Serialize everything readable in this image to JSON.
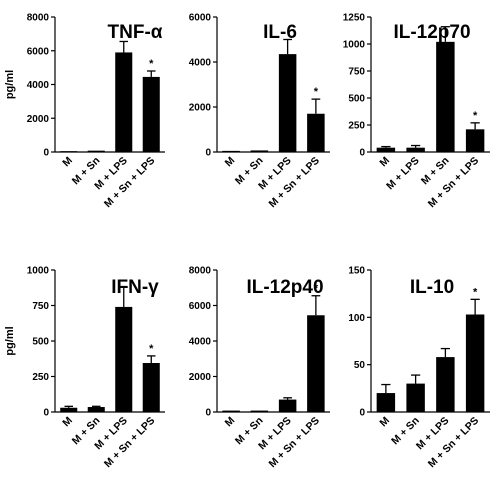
{
  "chart_data": [
    {
      "type": "bar",
      "title": "TNF-α",
      "ylabel": "pg/ml",
      "categories": [
        "M",
        "M + Sn",
        "M + LPS",
        "M + Sn + LPS"
      ],
      "values": [
        50,
        80,
        5900,
        4450
      ],
      "errors": [
        0,
        0,
        650,
        350
      ],
      "significance": [
        false,
        false,
        false,
        true
      ],
      "ylim": [
        0,
        8000
      ],
      "yticks": [
        "0",
        "2000",
        "4000",
        "6000",
        "8000"
      ]
    },
    {
      "type": "bar",
      "title": "IL-6",
      "ylabel": "",
      "categories": [
        "M",
        "M + Sn",
        "M + LPS",
        "M + Sn + LPS"
      ],
      "values": [
        50,
        70,
        4350,
        1700
      ],
      "errors": [
        0,
        0,
        650,
        650
      ],
      "significance": [
        false,
        false,
        false,
        true
      ],
      "ylim": [
        0,
        6000
      ],
      "yticks": [
        "0",
        "2000",
        "4000",
        "6000"
      ]
    },
    {
      "type": "bar",
      "title": "IL-12p70",
      "ylabel": "",
      "categories": [
        "M",
        "M + LPS",
        "M + Sn",
        "M + Sn + LPS"
      ],
      "values": [
        40,
        40,
        1020,
        210
      ],
      "errors": [
        10,
        20,
        140,
        60
      ],
      "significance": [
        false,
        false,
        false,
        true
      ],
      "ylim": [
        0,
        1250
      ],
      "yticks": [
        "0",
        "250",
        "500",
        "750",
        "1000",
        "1250"
      ]
    },
    {
      "type": "bar",
      "title": "IFN-γ",
      "ylabel": "pg/ml",
      "categories": [
        "M",
        "M + Sn",
        "M + LPS",
        "M + Sn + LPS"
      ],
      "values": [
        30,
        35,
        740,
        345
      ],
      "errors": [
        10,
        5,
        140,
        50
      ],
      "significance": [
        false,
        false,
        false,
        true
      ],
      "ylim": [
        0,
        1000
      ],
      "yticks": [
        "0",
        "250",
        "500",
        "750",
        "1000"
      ]
    },
    {
      "type": "bar",
      "title": "IL-12p40",
      "ylabel": "",
      "categories": [
        "M",
        "M + Sn",
        "M + LPS",
        "M + Sn + LPS"
      ],
      "values": [
        80,
        80,
        700,
        5450
      ],
      "errors": [
        0,
        0,
        100,
        1100
      ],
      "significance": [
        false,
        false,
        false,
        true
      ],
      "ylim": [
        0,
        8000
      ],
      "yticks": [
        "0",
        "2000",
        "4000",
        "6000",
        "8000"
      ]
    },
    {
      "type": "bar",
      "title": "IL-10",
      "ylabel": "",
      "categories": [
        "M",
        "M + Sn",
        "M + LPS",
        "M + Sn + LPS"
      ],
      "values": [
        20,
        30,
        58,
        103
      ],
      "errors": [
        9,
        9,
        9,
        16
      ],
      "significance": [
        false,
        false,
        false,
        true
      ],
      "ylim": [
        0,
        150
      ],
      "yticks": [
        "0",
        "50",
        "100",
        "150"
      ]
    }
  ],
  "significance_marker": "*",
  "colors": {
    "bar": "#000000",
    "axis": "#000000",
    "background": "#ffffff"
  }
}
